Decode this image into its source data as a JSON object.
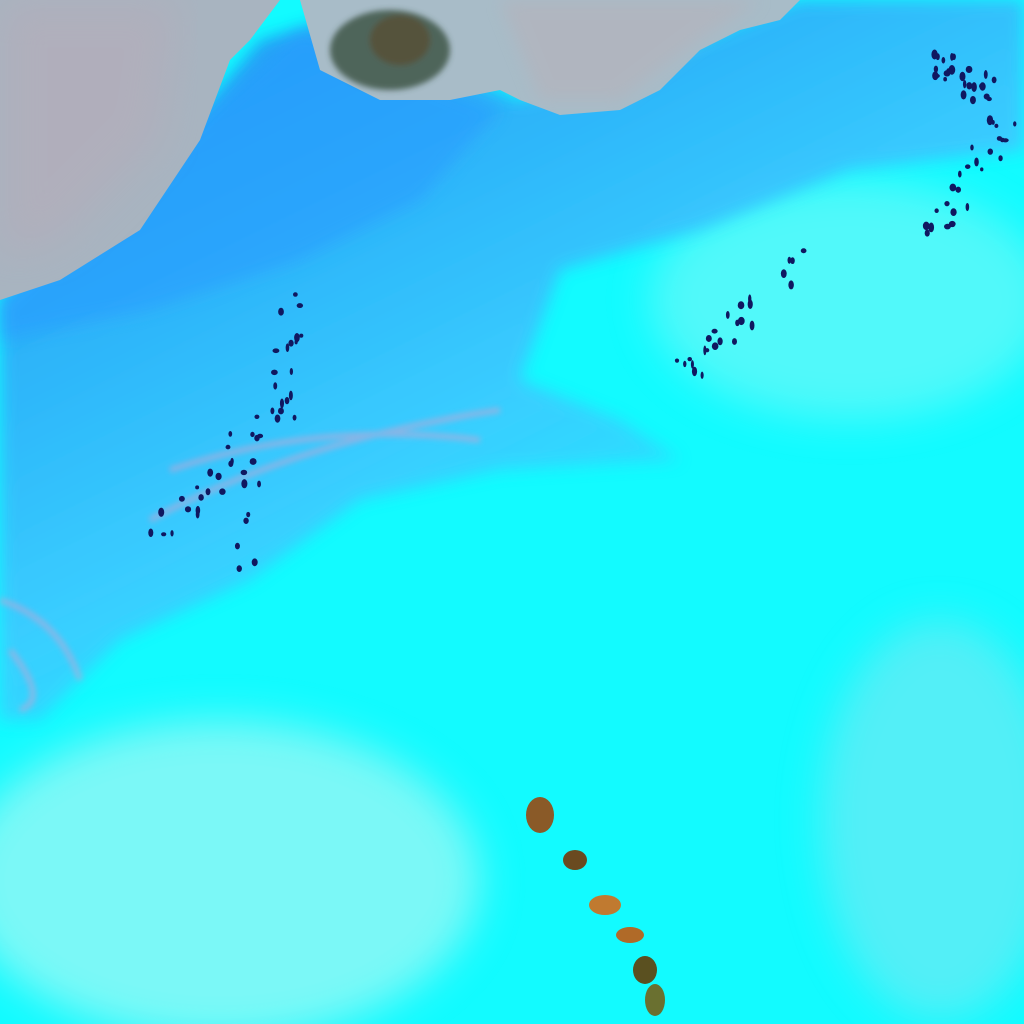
{
  "image": {
    "kind": "false-color satellite image",
    "colors": {
      "snow_cyan": "#12fbff",
      "pale_cyan": "#8ff7f5",
      "blue_cover": "#3aa8ff",
      "deep_blue": "#1c86f0",
      "land_grey": "#a8b4c0",
      "land_pink": "#b8aab8",
      "rock_dark": "#2a3a30",
      "rock_orange": "#c07a30",
      "lake_dots": "#101860"
    }
  }
}
